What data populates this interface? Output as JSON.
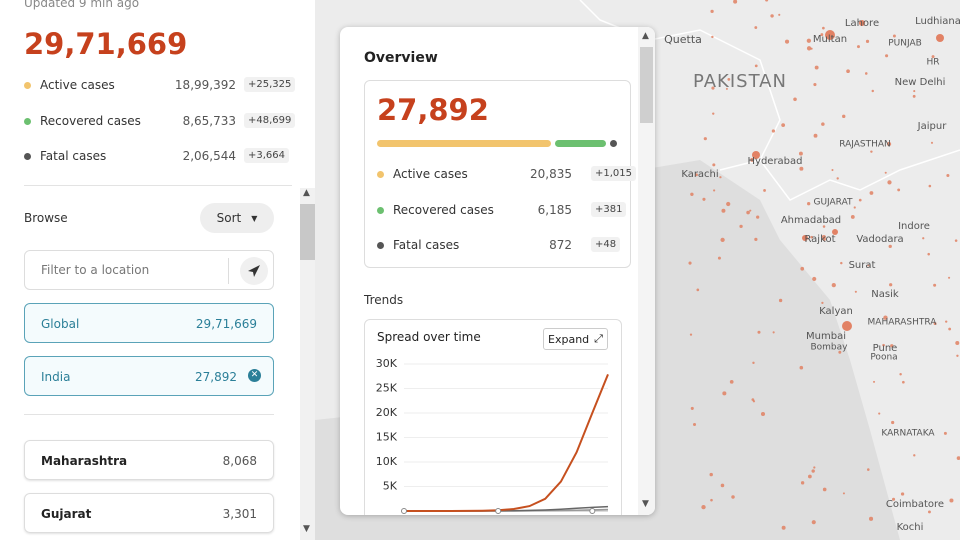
{
  "sidebar": {
    "updated": "Updated 9 min ago",
    "total": "29,71,669",
    "stats": [
      {
        "label": "Active cases",
        "value": "18,99,392",
        "delta": "+25,325"
      },
      {
        "label": "Recovered cases",
        "value": "8,65,733",
        "delta": "+48,699"
      },
      {
        "label": "Fatal cases",
        "value": "2,06,544",
        "delta": "+3,664"
      }
    ],
    "browse": "Browse",
    "sort": "Sort",
    "filter_placeholder": "Filter to a location",
    "locations": [
      {
        "name": "Global",
        "value": "29,71,669"
      },
      {
        "name": "India",
        "value": "27,892"
      }
    ],
    "regions": [
      {
        "name": "Maharashtra",
        "value": "8,068"
      },
      {
        "name": "Gujarat",
        "value": "3,301"
      }
    ]
  },
  "overview": {
    "title": "Overview",
    "total": "27,892",
    "stats": [
      {
        "label": "Active cases",
        "value": "20,835",
        "delta": "+1,015"
      },
      {
        "label": "Recovered cases",
        "value": "6,185",
        "delta": "+381"
      },
      {
        "label": "Fatal cases",
        "value": "872",
        "delta": "+48"
      }
    ],
    "trends": "Trends",
    "card_title": "Spread over time",
    "expand": "Expand"
  },
  "chart_data": {
    "type": "line",
    "categories": [
      null,
      null,
      null,
      null,
      null,
      null,
      null,
      null,
      null,
      null,
      null,
      null,
      null,
      null
    ],
    "series": [
      {
        "color": "#c6501f",
        "values": [
          0,
          0,
          0,
          0,
          20,
          60,
          150,
          400,
          1000,
          2500,
          6000,
          12000,
          20000,
          27892
        ]
      },
      {
        "color": "#666666",
        "values": [
          0,
          0,
          0,
          0,
          0,
          10,
          30,
          60,
          120,
          200,
          350,
          550,
          750,
          900
        ]
      },
      {
        "color": "#999999",
        "values": [
          0,
          0,
          0,
          0,
          0,
          0,
          5,
          10,
          20,
          40,
          80,
          150,
          230,
          300
        ]
      }
    ],
    "ylim": [
      0,
      30000
    ],
    "yticks": [
      {
        "value": 5000,
        "label": "5K"
      },
      {
        "value": 10000,
        "label": "10K"
      },
      {
        "value": 15000,
        "label": "15K"
      },
      {
        "value": 20000,
        "label": "20K"
      },
      {
        "value": 25000,
        "label": "25K"
      },
      {
        "value": 30000,
        "label": "30K"
      }
    ]
  },
  "map": {
    "labels": [
      "Quetta",
      "Lahore",
      "Multan",
      "PAKISTAN",
      "Ludhiana",
      "PUNJAB",
      "HR",
      "New Delhi",
      "Jaipur",
      "RAJASTHAN",
      "Hyderabad",
      "Karachi",
      "GUJARAT",
      "Ahmadabad",
      "Indore",
      "Rajkot",
      "Vadodara",
      "Surat",
      "Nasik",
      "Kalyan",
      "MAHARASHTRA",
      "Mumbai",
      "Bombay",
      "Pune",
      "Poona",
      "KARNATAKA",
      "Coimbatore",
      "Kochi"
    ]
  }
}
